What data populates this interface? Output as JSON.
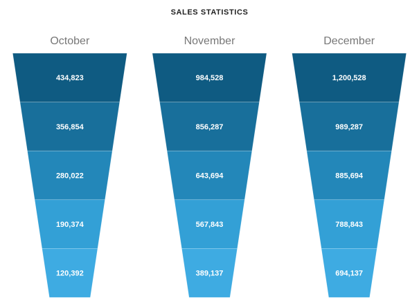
{
  "chart_data": {
    "type": "funnel",
    "title": "SALES STATISTICS",
    "colors": [
      "#0f5b82",
      "#186f9b",
      "#2387b9",
      "#33a0d6",
      "#3eabe2"
    ],
    "series": [
      {
        "name": "October",
        "values": [
          434823,
          356854,
          280022,
          190374,
          120392
        ],
        "value_labels": [
          "434,823",
          "356,854",
          "280,022",
          "190,374",
          "120,392"
        ]
      },
      {
        "name": "November",
        "values": [
          984528,
          856287,
          643694,
          567843,
          389137
        ],
        "value_labels": [
          "984,528",
          "856,287",
          "643,694",
          "567,843",
          "389,137"
        ]
      },
      {
        "name": "December",
        "values": [
          1200528,
          989287,
          885694,
          788843,
          694137
        ],
        "value_labels": [
          "1,200,528",
          "989,287",
          "885,694",
          "788,843",
          "694,137"
        ]
      }
    ]
  }
}
